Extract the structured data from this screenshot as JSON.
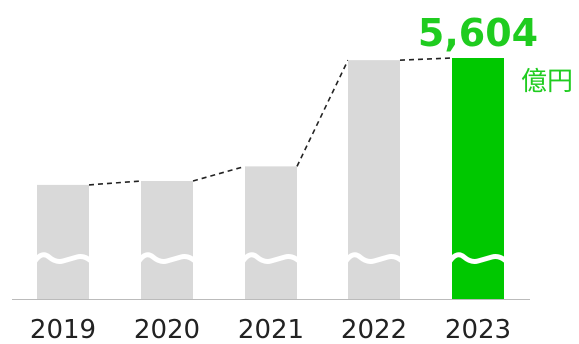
{
  "chart_data": {
    "type": "bar",
    "categories": [
      "2019",
      "2020",
      "2021",
      "2022",
      "2023"
    ],
    "values": [
      3000,
      3080,
      3380,
      5560,
      5604
    ],
    "highlight_index": 4,
    "value_label": "5,604",
    "unit_label": "億円",
    "axis_break": true,
    "connector_lines": "dashed",
    "grid": false,
    "title": "",
    "xlabel": "",
    "ylabel": "",
    "colors": {
      "bar": "#d9d9d9",
      "highlight": "#00c800",
      "highlight_text": "#1fcc1f",
      "axis": "#bbbbbb",
      "connector": "#222222",
      "break_wave": "#ffffff"
    }
  }
}
